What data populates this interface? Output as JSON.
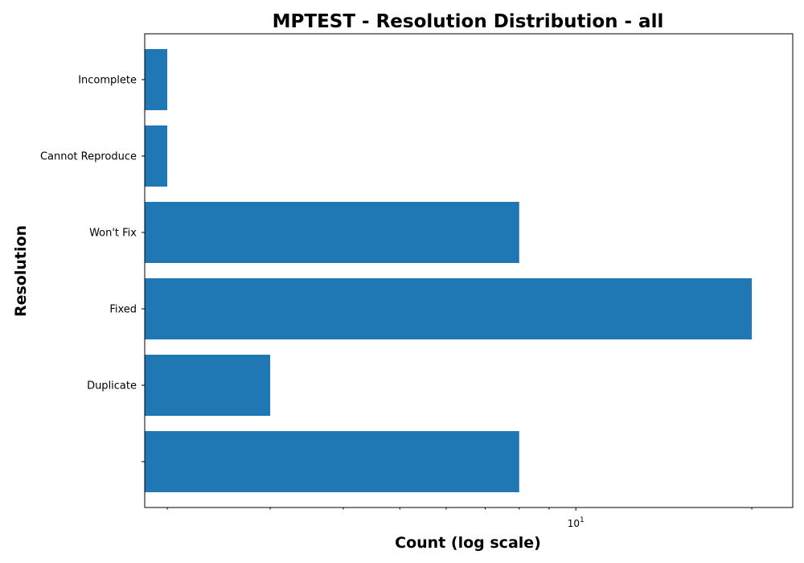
{
  "chart_data": {
    "type": "bar",
    "orientation": "horizontal",
    "title": "MPTEST - Resolution Distribution - all",
    "xlabel": "Count (log scale)",
    "ylabel": "Resolution",
    "x_scale": "log",
    "x_tick_labels": [
      {
        "base": "10",
        "exponent": "1",
        "value": 10
      }
    ],
    "xlim": [
      1.83,
      23.5
    ],
    "categories": [
      "",
      "Duplicate",
      "Fixed",
      "Won't Fix",
      "Cannot Reproduce",
      "Incomplete"
    ],
    "values": [
      8,
      3,
      20,
      8,
      2,
      2
    ],
    "bar_color": "#1f77b4",
    "grid": false,
    "legend": "none"
  }
}
